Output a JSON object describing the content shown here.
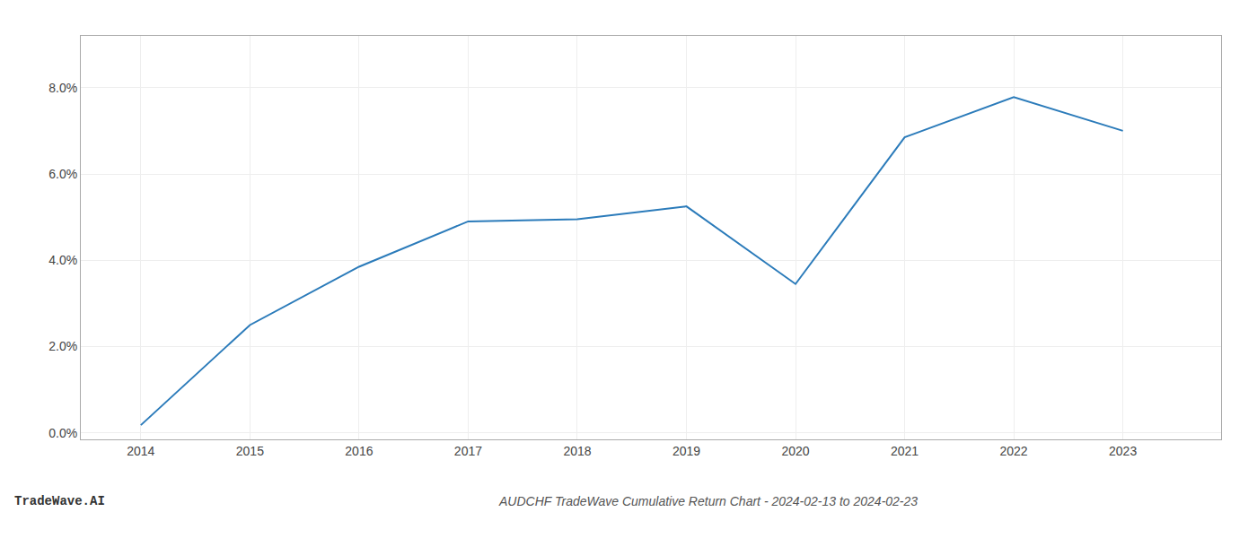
{
  "chart_data": {
    "type": "line",
    "title": "AUDCHF TradeWave Cumulative Return Chart - 2024-02-13 to 2024-02-23",
    "annotations": [
      {
        "text": "TradeWave.AI"
      }
    ],
    "x": [
      2014,
      2015,
      2016,
      2017,
      2018,
      2019,
      2020,
      2021,
      2022,
      2023
    ],
    "values": [
      0.18,
      2.5,
      3.85,
      4.9,
      4.95,
      5.25,
      3.45,
      6.85,
      7.78,
      7.0
    ],
    "color": "#2b7bba",
    "xlim": [
      2013.45,
      2023.9
    ],
    "xticks": [
      2014,
      2015,
      2016,
      2017,
      2018,
      2019,
      2020,
      2021,
      2022,
      2023
    ],
    "ylim": [
      -0.15,
      9.2
    ],
    "yticks": [
      {
        "value": 0.0,
        "label": "0.0%"
      },
      {
        "value": 2.0,
        "label": "2.0%"
      },
      {
        "value": 4.0,
        "label": "4.0%"
      },
      {
        "value": 6.0,
        "label": "6.0%"
      },
      {
        "value": 8.0,
        "label": "8.0%"
      }
    ],
    "grid": true
  }
}
